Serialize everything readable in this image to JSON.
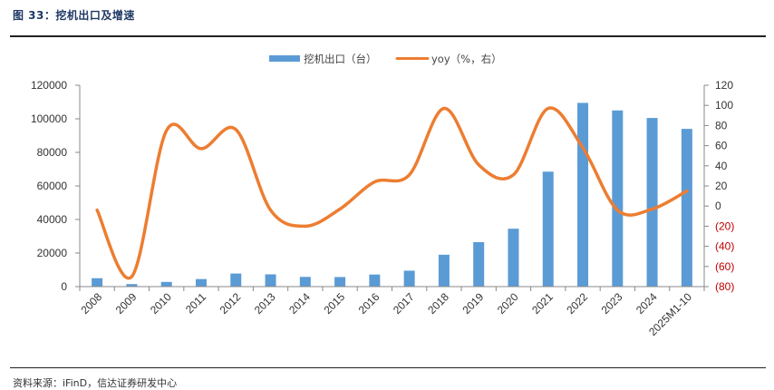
{
  "figure": {
    "title": "图 33：挖机出口及增速",
    "source": "资料来源：iFinD，信达证券研发中心"
  },
  "chart_data": {
    "type": "bar+line",
    "categories": [
      "2008",
      "2009",
      "2010",
      "2011",
      "2012",
      "2013",
      "2014",
      "2015",
      "2016",
      "2017",
      "2018",
      "2019",
      "2020",
      "2021",
      "2022",
      "2023",
      "2024",
      "2025M1-10"
    ],
    "series": [
      {
        "name": "挖机出口（台）",
        "type": "bar",
        "axis": "left",
        "color": "#5b9bd5",
        "values": [
          5000,
          1500,
          2800,
          4500,
          7800,
          7300,
          5800,
          5700,
          7200,
          9500,
          19000,
          26500,
          34500,
          68500,
          109500,
          105000,
          100500,
          94000
        ]
      },
      {
        "name": "yoy（%，右）",
        "type": "line",
        "axis": "right",
        "color": "#ed7d31",
        "values": [
          -4,
          -70,
          75,
          57,
          76,
          -4,
          -20,
          -3,
          24,
          31,
          97,
          41,
          31,
          97,
          58,
          -4,
          -3,
          15
        ]
      }
    ],
    "y_left": {
      "min": 0,
      "max": 120000,
      "ticks": [
        "0",
        "20000",
        "40000",
        "60000",
        "80000",
        "100000",
        "120000"
      ]
    },
    "y_right": {
      "min": -80,
      "max": 120,
      "ticks": [
        "(80)",
        "(60)",
        "(40)",
        "(20)",
        "0",
        "20",
        "40",
        "60",
        "80",
        "100",
        "120"
      ]
    },
    "legend_position": "top-center",
    "grid": false
  }
}
